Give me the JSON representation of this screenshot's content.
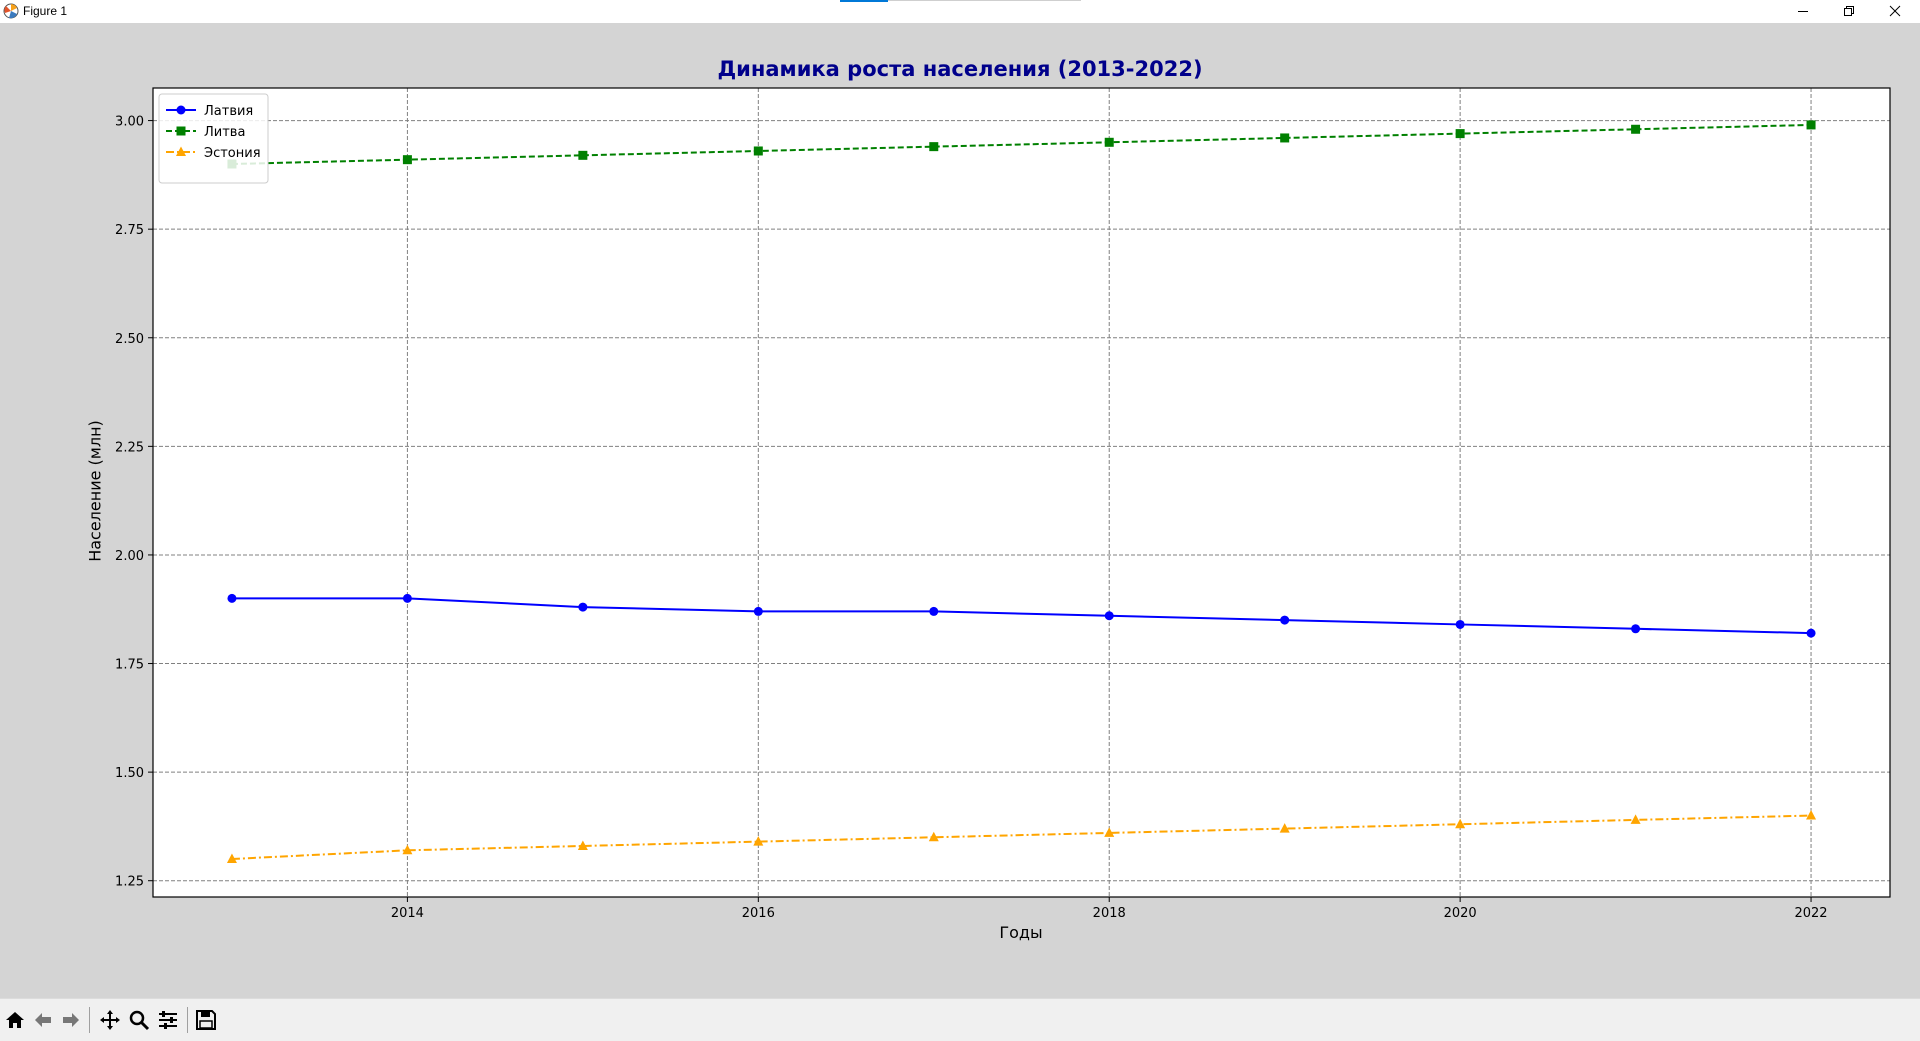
{
  "window": {
    "title": "Figure 1"
  },
  "toolbar": {
    "buttons": [
      {
        "name": "home-icon",
        "action": "Home"
      },
      {
        "name": "back-arrow-icon",
        "action": "Back"
      },
      {
        "name": "forward-arrow-icon",
        "action": "Forward"
      },
      {
        "name": "pan-icon",
        "action": "Pan"
      },
      {
        "name": "zoom-icon",
        "action": "Zoom"
      },
      {
        "name": "configure-subplots-icon",
        "action": "Configure subplots"
      },
      {
        "name": "save-icon",
        "action": "Save"
      }
    ]
  },
  "chart_data": {
    "type": "line",
    "title": "Динамика роста населения (2013-2022)",
    "xlabel": "Годы",
    "ylabel": "Население (млн)",
    "x": [
      2013,
      2014,
      2015,
      2016,
      2017,
      2018,
      2019,
      2020,
      2021,
      2022
    ],
    "xlim": [
      2012.55,
      2022.45
    ],
    "ylim": [
      1.2125,
      3.075
    ],
    "xticks": [
      "2014",
      "2016",
      "2018",
      "2020",
      "2022"
    ],
    "yticks": [
      "1.25",
      "1.50",
      "1.75",
      "2.00",
      "2.25",
      "2.50",
      "2.75",
      "3.00"
    ],
    "grid": true,
    "legend_position": "upper left",
    "series": [
      {
        "name": "Латвия",
        "color": "#0000ff",
        "linestyle": "solid",
        "marker": "circle",
        "values": [
          1.9,
          1.9,
          1.88,
          1.87,
          1.87,
          1.86,
          1.85,
          1.84,
          1.83,
          1.82
        ]
      },
      {
        "name": "Литва",
        "color": "#008000",
        "linestyle": "dashed",
        "marker": "square",
        "values": [
          2.9,
          2.91,
          2.92,
          2.93,
          2.94,
          2.95,
          2.96,
          2.97,
          2.98,
          2.99
        ]
      },
      {
        "name": "Эстония",
        "color": "#ffa500",
        "linestyle": "dashdot",
        "marker": "triangle",
        "values": [
          1.3,
          1.32,
          1.33,
          1.34,
          1.35,
          1.36,
          1.37,
          1.38,
          1.39,
          1.4
        ]
      }
    ]
  }
}
